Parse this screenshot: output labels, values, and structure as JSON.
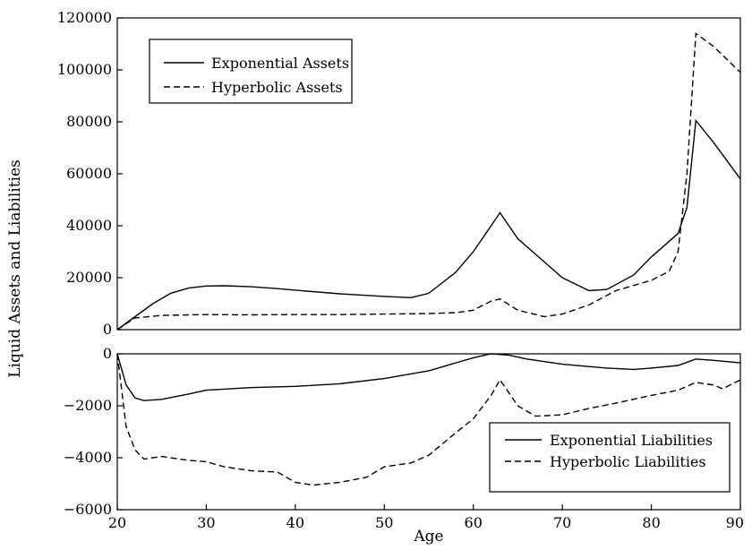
{
  "chart_data": {
    "type": "line",
    "xlabel": "Age",
    "ylabel": "Liquid Assets and Liabilities",
    "x_ticks": [
      "20",
      "30",
      "40",
      "50",
      "60",
      "70",
      "80",
      "90"
    ],
    "panels": [
      {
        "id": "assets",
        "ylim": [
          0,
          120000
        ],
        "xlim": [
          20,
          90
        ],
        "y_ticks": [
          "0",
          "20000",
          "40000",
          "60000",
          "80000",
          "100000",
          "120000"
        ],
        "y_tick_values": [
          0,
          20000,
          40000,
          60000,
          80000,
          100000,
          120000
        ],
        "legend_position": "top-left",
        "series": [
          {
            "name": "Exponential Assets",
            "style": "solid",
            "points": [
              [
                20,
                0
              ],
              [
                22,
                5000
              ],
              [
                24,
                10000
              ],
              [
                26,
                14000
              ],
              [
                28,
                16000
              ],
              [
                30,
                16800
              ],
              [
                32,
                16900
              ],
              [
                35,
                16500
              ],
              [
                38,
                15800
              ],
              [
                40,
                15200
              ],
              [
                45,
                13800
              ],
              [
                50,
                12800
              ],
              [
                53,
                12300
              ],
              [
                55,
                14000
              ],
              [
                58,
                22000
              ],
              [
                60,
                30000
              ],
              [
                62,
                40000
              ],
              [
                63,
                45000
              ],
              [
                65,
                35000
              ],
              [
                68,
                26000
              ],
              [
                70,
                20000
              ],
              [
                73,
                15000
              ],
              [
                75,
                15500
              ],
              [
                78,
                21000
              ],
              [
                80,
                28000
              ],
              [
                83,
                37000
              ],
              [
                84,
                47000
              ],
              [
                85,
                80500
              ],
              [
                87,
                72000
              ],
              [
                90,
                58000
              ]
            ]
          },
          {
            "name": "Hyperbolic Assets",
            "style": "dashed",
            "points": [
              [
                20,
                0
              ],
              [
                22,
                4500
              ],
              [
                25,
                5500
              ],
              [
                30,
                5800
              ],
              [
                35,
                5700
              ],
              [
                40,
                5800
              ],
              [
                45,
                5800
              ],
              [
                50,
                6000
              ],
              [
                55,
                6200
              ],
              [
                58,
                6500
              ],
              [
                60,
                7500
              ],
              [
                62,
                11000
              ],
              [
                63,
                11800
              ],
              [
                65,
                7500
              ],
              [
                68,
                5000
              ],
              [
                70,
                6000
              ],
              [
                73,
                9500
              ],
              [
                76,
                15000
              ],
              [
                80,
                19000
              ],
              [
                82,
                22500
              ],
              [
                83,
                30000
              ],
              [
                84,
                60000
              ],
              [
                85,
                114000
              ],
              [
                87,
                109000
              ],
              [
                90,
                99000
              ]
            ]
          }
        ]
      },
      {
        "id": "liabilities",
        "ylim": [
          -6000,
          0
        ],
        "xlim": [
          20,
          90
        ],
        "y_ticks": [
          "0",
          "−2000",
          "−4000",
          "−6000"
        ],
        "y_tick_values": [
          0,
          -2000,
          -4000,
          -6000
        ],
        "legend_position": "bottom-right",
        "series": [
          {
            "name": "Exponential Liabilities",
            "style": "solid",
            "points": [
              [
                20,
                0
              ],
              [
                21,
                -1200
              ],
              [
                22,
                -1700
              ],
              [
                23,
                -1800
              ],
              [
                25,
                -1750
              ],
              [
                28,
                -1550
              ],
              [
                30,
                -1400
              ],
              [
                35,
                -1300
              ],
              [
                40,
                -1250
              ],
              [
                45,
                -1150
              ],
              [
                50,
                -950
              ],
              [
                55,
                -650
              ],
              [
                60,
                -150
              ],
              [
                62,
                0
              ],
              [
                64,
                -50
              ],
              [
                66,
                -200
              ],
              [
                70,
                -400
              ],
              [
                75,
                -550
              ],
              [
                78,
                -600
              ],
              [
                80,
                -550
              ],
              [
                83,
                -450
              ],
              [
                85,
                -200
              ],
              [
                87,
                -250
              ],
              [
                90,
                -350
              ]
            ]
          },
          {
            "name": "Hyperbolic Liabilities",
            "style": "dashed",
            "points": [
              [
                20,
                0
              ],
              [
                21,
                -2800
              ],
              [
                22,
                -3700
              ],
              [
                23,
                -4050
              ],
              [
                25,
                -3950
              ],
              [
                28,
                -4100
              ],
              [
                30,
                -4150
              ],
              [
                32,
                -4350
              ],
              [
                35,
                -4500
              ],
              [
                38,
                -4550
              ],
              [
                40,
                -4950
              ],
              [
                42,
                -5050
              ],
              [
                45,
                -4950
              ],
              [
                48,
                -4750
              ],
              [
                50,
                -4350
              ],
              [
                53,
                -4200
              ],
              [
                55,
                -3900
              ],
              [
                58,
                -3050
              ],
              [
                60,
                -2500
              ],
              [
                62,
                -1600
              ],
              [
                63,
                -1000
              ],
              [
                65,
                -2000
              ],
              [
                67,
                -2400
              ],
              [
                70,
                -2350
              ],
              [
                73,
                -2100
              ],
              [
                76,
                -1900
              ],
              [
                80,
                -1600
              ],
              [
                83,
                -1400
              ],
              [
                85,
                -1100
              ],
              [
                87,
                -1200
              ],
              [
                88,
                -1350
              ],
              [
                90,
                -1000
              ]
            ]
          }
        ]
      }
    ]
  }
}
